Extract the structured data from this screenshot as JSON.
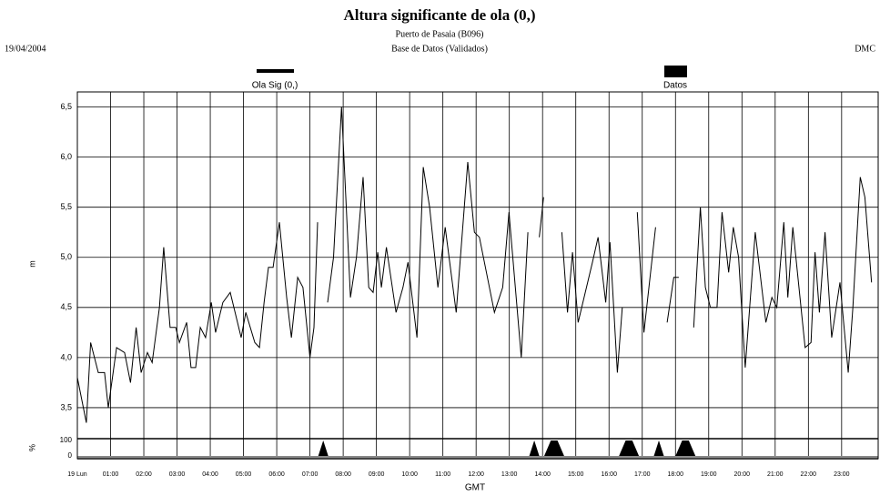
{
  "chart_data": [
    {
      "type": "line",
      "title": "Altura significante de ola (0,)",
      "subtitles": [
        "Puerto de Pasaia (B096)",
        "Base de Datos (Validados)"
      ],
      "date": "19/04/2004",
      "author": "DMC",
      "ylabel": "m",
      "grid": true,
      "xlim": [
        0,
        24.1
      ],
      "ylim": [
        3.2,
        6.65
      ],
      "yticks": [
        {
          "value": 3.5,
          "label": "3,5"
        },
        {
          "value": 4.0,
          "label": "4,0"
        },
        {
          "value": 4.5,
          "label": "4,5"
        },
        {
          "value": 5.0,
          "label": "5,0"
        },
        {
          "value": 5.5,
          "label": "5,5"
        },
        {
          "value": 6.0,
          "label": "6,0"
        },
        {
          "value": 6.5,
          "label": "6,5"
        }
      ],
      "series": [
        {
          "name": "Ola Sig (0,)",
          "color": "#000000",
          "x": [
            0,
            0.27,
            0.4,
            0.63,
            0.82,
            0.93,
            1.18,
            1.42,
            1.6,
            1.77,
            1.92,
            2.11,
            2.25,
            2.47,
            2.6,
            2.79,
            2.96,
            3.07,
            3.29,
            3.42,
            3.56,
            3.7,
            3.86,
            4.03,
            4.16,
            4.38,
            4.6,
            4.93,
            5.07,
            5.34,
            5.48,
            5.62,
            5.75,
            5.89,
            6.08,
            6.3,
            6.44,
            6.63,
            6.79,
            7.0,
            7.12,
            7.23,
            7.35,
            7.53,
            7.71,
            7.95,
            8.08,
            8.22,
            8.4,
            8.6,
            8.77,
            8.9,
            9.04,
            9.15,
            9.3,
            9.59,
            9.8,
            9.95,
            10.22,
            10.41,
            10.6,
            10.85,
            11.07,
            11.4,
            11.75,
            11.95,
            12.1,
            12.55,
            12.8,
            12.99,
            13.36,
            13.56,
            13.7,
            13.9,
            14.03,
            14.2,
            14.58,
            14.75,
            14.9,
            15.07,
            15.5,
            15.67,
            15.9,
            16.03,
            16.25,
            16.4,
            16.55,
            16.85,
            17.05,
            17.4,
            17.55,
            17.75,
            17.95,
            18.1,
            18.3,
            18.55,
            18.75,
            18.9,
            19.05,
            19.25,
            19.4,
            19.6,
            19.74,
            19.9,
            20.1,
            20.4,
            20.72,
            20.9,
            21.05,
            21.26,
            21.38,
            21.53,
            21.9,
            22.08,
            22.2,
            22.33,
            22.5,
            22.7,
            22.95,
            23.2,
            23.34,
            23.56,
            23.7,
            23.9
          ],
          "values": [
            3.8,
            3.35,
            4.15,
            3.85,
            3.85,
            3.5,
            4.1,
            4.05,
            3.75,
            4.3,
            3.85,
            4.05,
            3.95,
            4.5,
            5.1,
            4.3,
            4.3,
            4.15,
            4.35,
            3.9,
            3.9,
            4.3,
            4.2,
            4.55,
            4.25,
            4.55,
            4.65,
            4.2,
            4.45,
            4.15,
            4.1,
            4.55,
            4.9,
            4.9,
            5.35,
            4.6,
            4.2,
            4.8,
            4.7,
            4.0,
            4.3,
            5.35,
            null,
            4.55,
            5.0,
            6.5,
            5.6,
            4.6,
            5.0,
            5.8,
            4.7,
            4.65,
            5.05,
            4.7,
            5.1,
            4.45,
            4.7,
            4.95,
            4.2,
            5.9,
            5.5,
            4.7,
            5.3,
            4.45,
            5.95,
            5.25,
            5.2,
            4.45,
            4.7,
            5.45,
            4.0,
            5.25,
            null,
            5.2,
            5.6,
            null,
            5.25,
            4.45,
            5.05,
            4.35,
            4.95,
            5.2,
            4.55,
            5.15,
            3.85,
            4.5,
            null,
            5.45,
            4.25,
            5.3,
            null,
            4.35,
            4.8,
            4.8,
            null,
            4.3,
            5.5,
            4.7,
            4.5,
            4.5,
            5.45,
            4.85,
            5.3,
            5.0,
            3.9,
            5.25,
            4.35,
            4.6,
            4.5,
            5.35,
            4.6,
            5.3,
            4.1,
            4.15,
            5.05,
            4.45,
            5.25,
            4.2,
            4.75,
            3.85,
            4.5,
            5.8,
            5.6,
            4.75
          ]
        }
      ]
    },
    {
      "type": "area",
      "ylabel": "%",
      "xlabel": "GMT",
      "xlim": [
        0,
        24.1
      ],
      "ylim": [
        0,
        100
      ],
      "yticks": [
        0,
        100
      ],
      "xticks": [
        {
          "value": 0,
          "label": "19 Lun"
        },
        {
          "value": 1,
          "label": "01:00"
        },
        {
          "value": 2,
          "label": "02:00"
        },
        {
          "value": 3,
          "label": "03:00"
        },
        {
          "value": 4,
          "label": "04:00"
        },
        {
          "value": 5,
          "label": "05:00"
        },
        {
          "value": 6,
          "label": "06:00"
        },
        {
          "value": 7,
          "label": "07:00"
        },
        {
          "value": 8,
          "label": "08:00"
        },
        {
          "value": 9,
          "label": "09:00"
        },
        {
          "value": 10,
          "label": "10:00"
        },
        {
          "value": 11,
          "label": "11:00"
        },
        {
          "value": 12,
          "label": "12:00"
        },
        {
          "value": 13,
          "label": "13:00"
        },
        {
          "value": 14,
          "label": "14:00"
        },
        {
          "value": 15,
          "label": "15:00"
        },
        {
          "value": 16,
          "label": "16:00"
        },
        {
          "value": 17,
          "label": "17:00"
        },
        {
          "value": 18,
          "label": "18:00"
        },
        {
          "value": 19,
          "label": "19:00"
        },
        {
          "value": 20,
          "label": "20:00"
        },
        {
          "value": 21,
          "label": "21:00"
        },
        {
          "value": 22,
          "label": "22:00"
        },
        {
          "value": 23,
          "label": "23:00"
        }
      ],
      "series": [
        {
          "name": "Datos",
          "color": "#000000",
          "x": [
            0,
            7.25,
            7.4,
            7.55,
            13.6,
            13.75,
            13.9,
            14.05,
            14.25,
            14.45,
            14.65,
            16.3,
            16.5,
            16.7,
            16.9,
            17.35,
            17.5,
            17.65,
            18.0,
            18.2,
            18.4,
            18.6,
            24.1
          ],
          "values": [
            0,
            0,
            100,
            0,
            0,
            100,
            0,
            0,
            100,
            100,
            0,
            0,
            100,
            100,
            0,
            0,
            100,
            0,
            0,
            100,
            100,
            0,
            0
          ]
        }
      ]
    }
  ]
}
